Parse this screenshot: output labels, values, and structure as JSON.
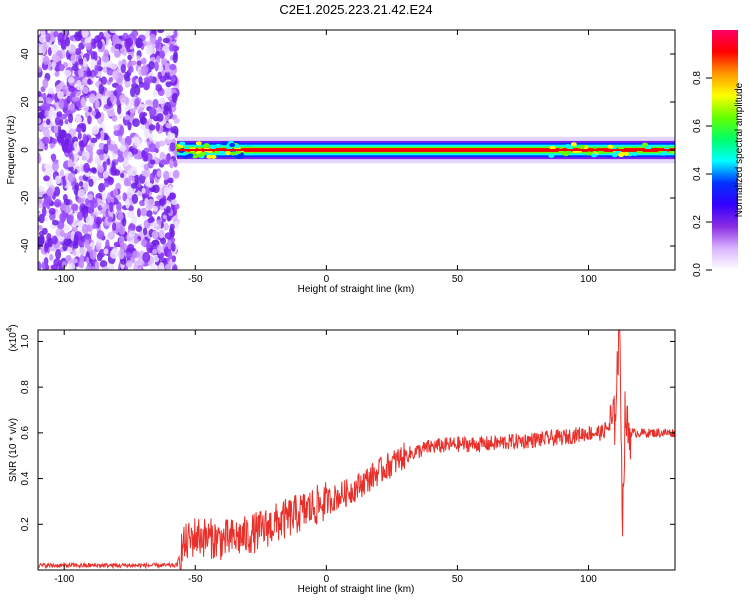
{
  "title": "C2E1.2025.223.21.42.E24",
  "chart_data": [
    {
      "type": "heatmap",
      "xlabel": "Height of straight line (km)",
      "ylabel": "Frequency (Hz)",
      "xlim": [
        -110,
        133
      ],
      "ylim": [
        -50,
        50
      ],
      "xticks": [
        -100,
        -50,
        0,
        50,
        100
      ],
      "yticks": [
        -40,
        -20,
        0,
        20,
        40
      ],
      "colorbar": {
        "label": "Normalized spectral amplitude",
        "ticks": [
          "0.0",
          "0.2",
          "0.4",
          "0.6",
          "0.8"
        ],
        "range": [
          0,
          1
        ],
        "colors": [
          "#ffffff",
          "#d9b3ff",
          "#8a2be2",
          "#3300ff",
          "#0033ff",
          "#00ffff",
          "#00ff66",
          "#66ff00",
          "#ffff00",
          "#ff9900",
          "#ff0000",
          "#ff0066"
        ]
      },
      "regions": [
        {
          "desc": "noise",
          "x": [
            -110,
            -57
          ],
          "y": [
            -50,
            50
          ],
          "amplitude": 0.25
        },
        {
          "desc": "carrier",
          "x": [
            -57,
            133
          ],
          "y": [
            -2,
            2
          ],
          "amplitude": 0.9
        }
      ],
      "carrier_frequency_hz": 0
    },
    {
      "type": "line",
      "xlabel": "Height of straight line (km)",
      "ylabel": "SNR (10 * v/v)",
      "y_scale_label": "(x10",
      "y_scale_exp": "4",
      "y_scale_close": ")",
      "xlim": [
        -110,
        133
      ],
      "ylim": [
        0,
        1.05
      ],
      "xticks": [
        -100,
        -50,
        0,
        50,
        100
      ],
      "yticks": [
        "0.2",
        "0.4",
        "0.6",
        "0.8",
        "1.0"
      ],
      "series_color": "#e8302a",
      "series": [
        {
          "x": [
            -110,
            -57,
            -55,
            -50,
            -40,
            -30,
            -20,
            -10,
            0,
            10,
            20,
            30,
            40,
            50,
            60,
            70,
            80,
            90,
            100,
            105,
            110,
            111,
            112,
            113,
            114,
            115,
            120,
            133
          ],
          "values": [
            0.02,
            0.02,
            0.1,
            0.15,
            0.13,
            0.15,
            0.2,
            0.25,
            0.3,
            0.35,
            0.43,
            0.5,
            0.54,
            0.55,
            0.55,
            0.56,
            0.57,
            0.58,
            0.6,
            0.6,
            0.65,
            0.9,
            1.05,
            0.2,
            0.7,
            0.6,
            0.6,
            0.6
          ]
        }
      ]
    }
  ]
}
